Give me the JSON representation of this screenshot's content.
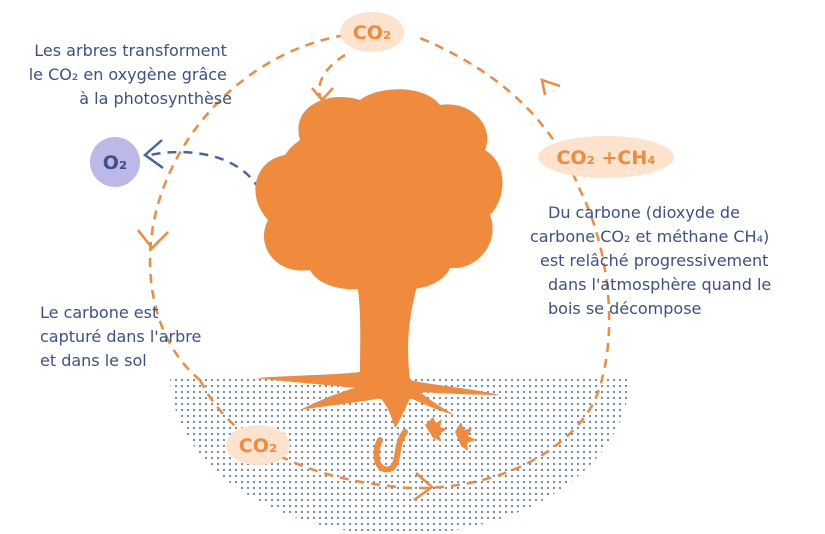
{
  "labels": {
    "co2_top": "CO₂",
    "oxygen": "O₂",
    "co2_ch4": "CO₂ +CH₄",
    "co2_soil": "CO₂"
  },
  "texts": {
    "photosynthesis": [
      "Les arbres transforment",
      "le CO₂ en oxygène grâce",
      "à la photosynthèse"
    ],
    "capture": [
      "Le carbone est",
      "capturé dans l'arbre",
      "et dans le sol"
    ],
    "decomposition": [
      "Du carbone (dioxyde de",
      "carbone CO₂ et méthane CH₄)",
      "est relâché progressivement",
      "dans l'atmosphère quand le",
      "bois se décompose"
    ]
  }
}
